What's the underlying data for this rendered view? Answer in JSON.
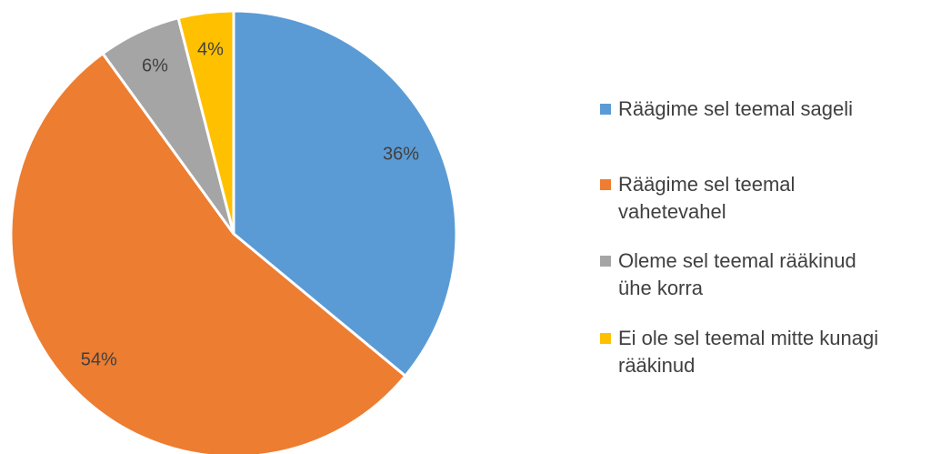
{
  "chart_data": {
    "type": "pie",
    "categories": [
      "Räägime sel teemal sageli",
      "Räägime sel teemal vahetevahel",
      "Oleme sel teemal rääkinud ühe korra",
      "Ei ole sel teemal  mitte kunagi rääkinud"
    ],
    "values": [
      36,
      54,
      6,
      4
    ],
    "value_labels": [
      "36%",
      "54%",
      "6%",
      "4%"
    ],
    "colors": [
      "#5b9bd5",
      "#ed7d31",
      "#a5a5a5",
      "#ffc000"
    ],
    "legend": "right"
  }
}
